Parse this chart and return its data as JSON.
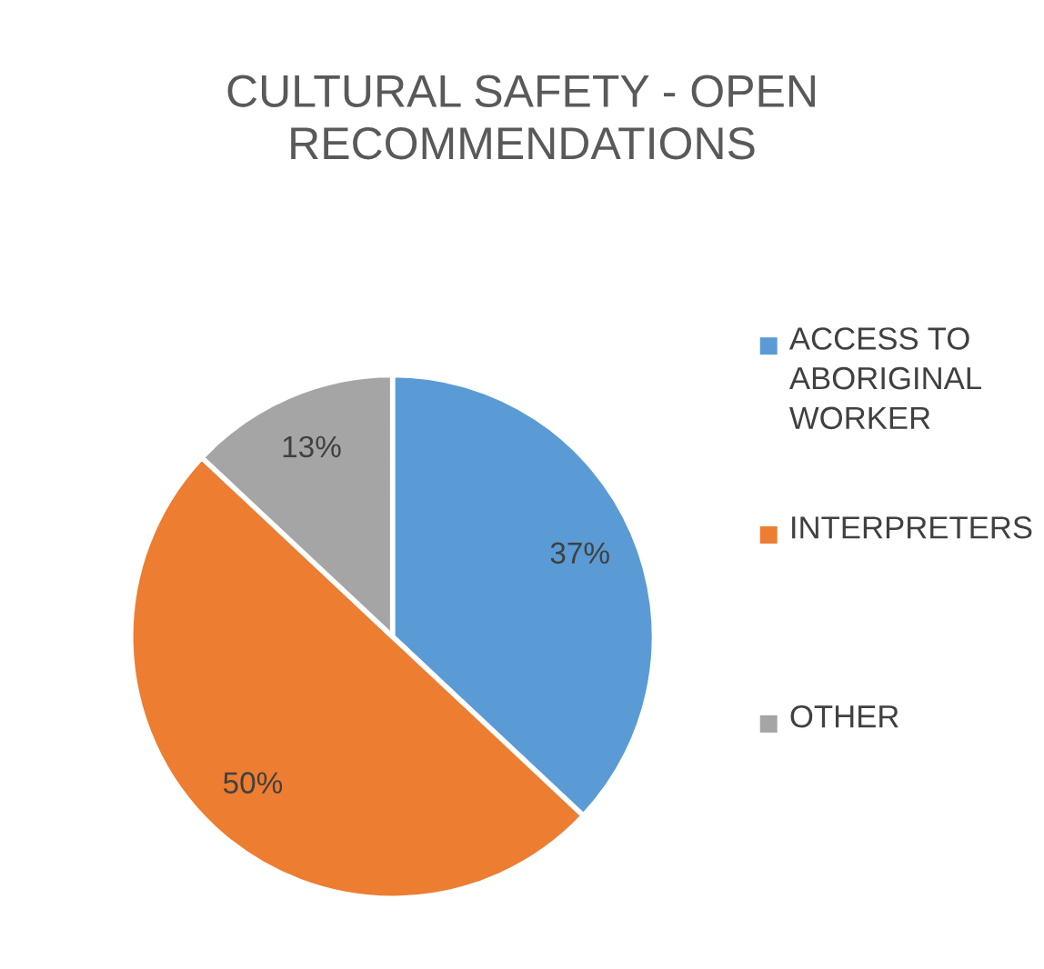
{
  "chart_data": {
    "type": "pie",
    "title": "CULTURAL SAFETY - OPEN\nRECOMMENDATIONS",
    "categories": [
      "ACCESS TO\nABORIGINAL\nWORKER",
      "INTERPRETERS",
      "OTHER"
    ],
    "values": [
      37,
      50,
      13
    ],
    "colors": [
      "#5b9bd5",
      "#ed7d31",
      "#a5a5a5"
    ],
    "value_labels": [
      "37%",
      "50%",
      "13%"
    ],
    "legend": "right"
  }
}
